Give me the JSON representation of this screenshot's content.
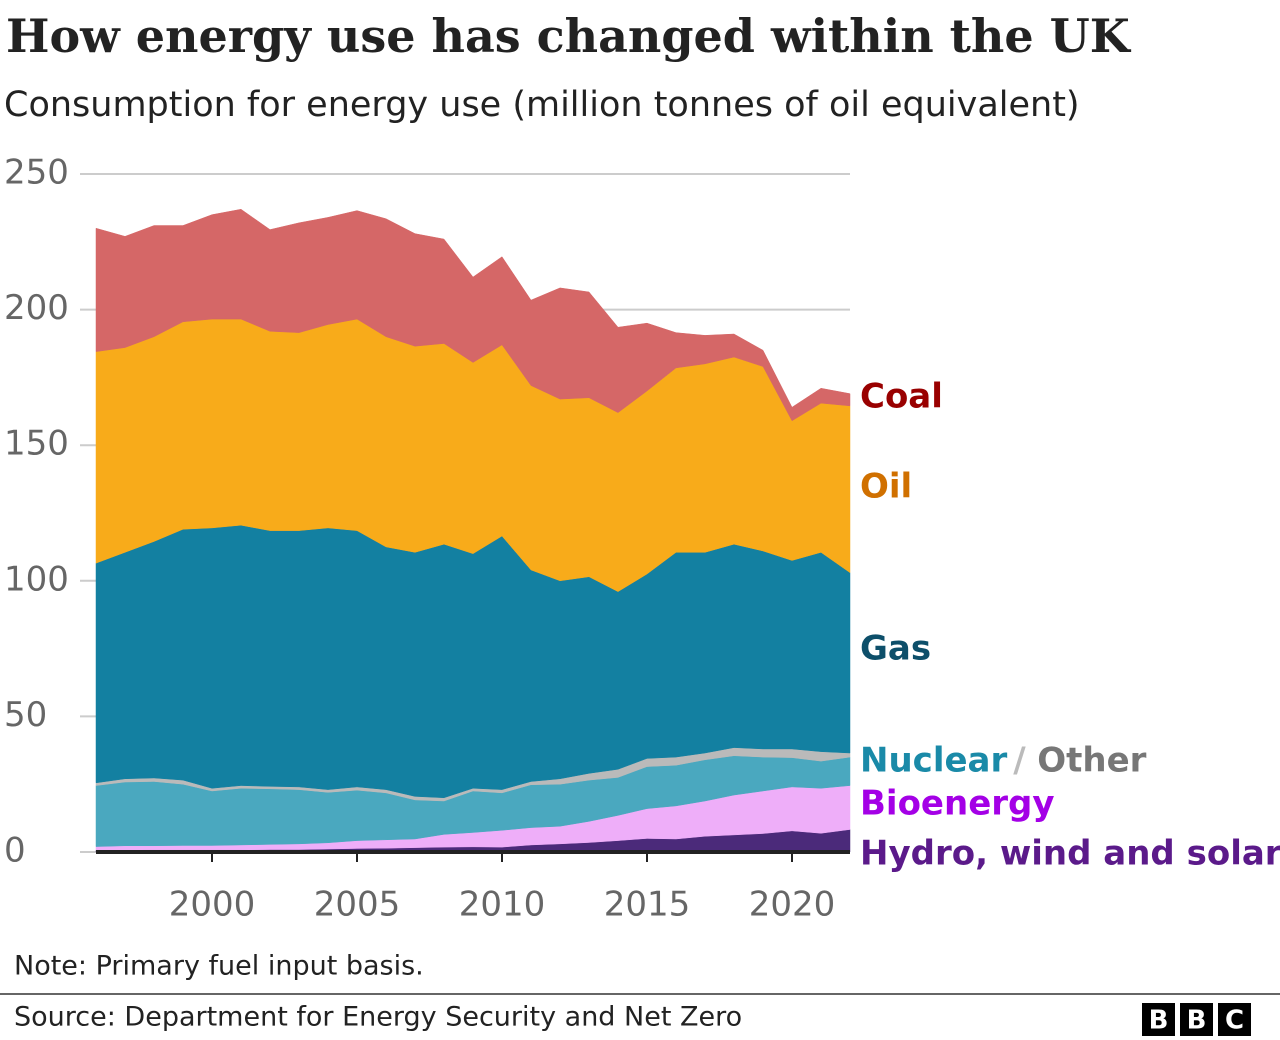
{
  "chart_data": {
    "type": "stacked_area",
    "title": "How energy use has changed within the UK",
    "subtitle": "Consumption for energy use (million tonnes of oil equivalent)",
    "note": "Note: Primary fuel input basis.",
    "source": "Source: Department for Energy Security and Net Zero",
    "logo": [
      "B",
      "B",
      "C"
    ],
    "x": [
      1996,
      1997,
      1998,
      1999,
      2000,
      2001,
      2002,
      2003,
      2004,
      2005,
      2006,
      2007,
      2008,
      2009,
      2010,
      2011,
      2012,
      2013,
      2014,
      2015,
      2016,
      2017,
      2018,
      2019,
      2020,
      2021,
      2022
    ],
    "xlim": [
      1996,
      2022
    ],
    "xticks": [
      2000,
      2005,
      2010,
      2015,
      2020
    ],
    "ylim": [
      0,
      250
    ],
    "yticks": [
      0,
      50,
      100,
      150,
      200,
      250
    ],
    "grid": true,
    "series": [
      {
        "name": "Hydro, wind and solar",
        "color": "#4b2a7a",
        "label_color": "#5b1a8a",
        "values": [
          0.6,
          0.7,
          0.8,
          0.8,
          0.8,
          0.8,
          0.9,
          0.9,
          1.1,
          1.3,
          1.4,
          1.6,
          1.8,
          1.9,
          1.8,
          2.6,
          3.0,
          3.5,
          4.2,
          5.0,
          4.8,
          5.8,
          6.3,
          6.8,
          7.8,
          6.9,
          8.3
        ]
      },
      {
        "name": "Bioenergy",
        "color": "#eeaef9",
        "label_color": "#a400e6",
        "values": [
          1.4,
          1.6,
          1.5,
          1.6,
          1.6,
          1.8,
          1.9,
          2.1,
          2.3,
          2.9,
          3.1,
          3.2,
          4.7,
          5.3,
          6.2,
          6.4,
          6.5,
          7.8,
          9.3,
          11.0,
          12.2,
          13.0,
          14.7,
          15.7,
          16.2,
          16.6,
          16.2
        ]
      },
      {
        "name": "Nuclear",
        "color": "#4aa8bf",
        "label_color": "#1a8aa8",
        "values": [
          22.5,
          23.5,
          23.7,
          22.6,
          20.1,
          20.9,
          20.5,
          20.0,
          18.6,
          18.6,
          17.3,
          14.4,
          12.3,
          15.3,
          13.8,
          15.8,
          15.5,
          15.2,
          14.0,
          15.5,
          15.0,
          15.2,
          14.5,
          12.5,
          10.8,
          10.0,
          10.5
        ]
      },
      {
        "name": "Other",
        "color": "#bababa",
        "label_color": "#777777",
        "values": [
          1.0,
          1.2,
          1.3,
          1.5,
          1.0,
          1.0,
          0.9,
          1.0,
          1.0,
          1.2,
          1.2,
          1.3,
          1.2,
          1.0,
          1.2,
          1.2,
          2.0,
          2.5,
          3.0,
          3.0,
          3.0,
          2.5,
          3.0,
          3.0,
          3.2,
          3.5,
          1.5
        ]
      },
      {
        "name": "Gas",
        "color": "#1380a1",
        "label_color": "#0d4f6a",
        "values": [
          81.0,
          83.5,
          87.2,
          92.5,
          96.0,
          96.0,
          94.3,
          94.5,
          96.5,
          94.5,
          89.5,
          90.0,
          93.5,
          86.5,
          93.5,
          78.0,
          73.0,
          72.5,
          65.5,
          68.0,
          75.5,
          74.0,
          75.0,
          73.0,
          69.5,
          73.5,
          66.5
        ]
      },
      {
        "name": "Oil",
        "color": "#f8ab1a",
        "label_color": "#d07000",
        "values": [
          78.0,
          75.5,
          75.5,
          76.5,
          77.0,
          76.0,
          73.5,
          73.0,
          75.0,
          78.0,
          77.5,
          76.0,
          74.0,
          70.5,
          70.5,
          68.0,
          67.0,
          66.0,
          66.0,
          67.5,
          68.0,
          69.5,
          69.0,
          68.0,
          51.5,
          55.0,
          61.5
        ]
      },
      {
        "name": "Coal",
        "color": "#d56767",
        "label_color": "#990000",
        "values": [
          45.5,
          41.0,
          41.0,
          35.5,
          38.5,
          40.5,
          37.5,
          40.5,
          39.5,
          40.0,
          43.5,
          41.5,
          38.5,
          31.5,
          32.5,
          31.5,
          41.0,
          39.0,
          31.5,
          25.0,
          13.0,
          10.5,
          8.5,
          6.0,
          5.0,
          5.5,
          4.5
        ]
      }
    ]
  }
}
